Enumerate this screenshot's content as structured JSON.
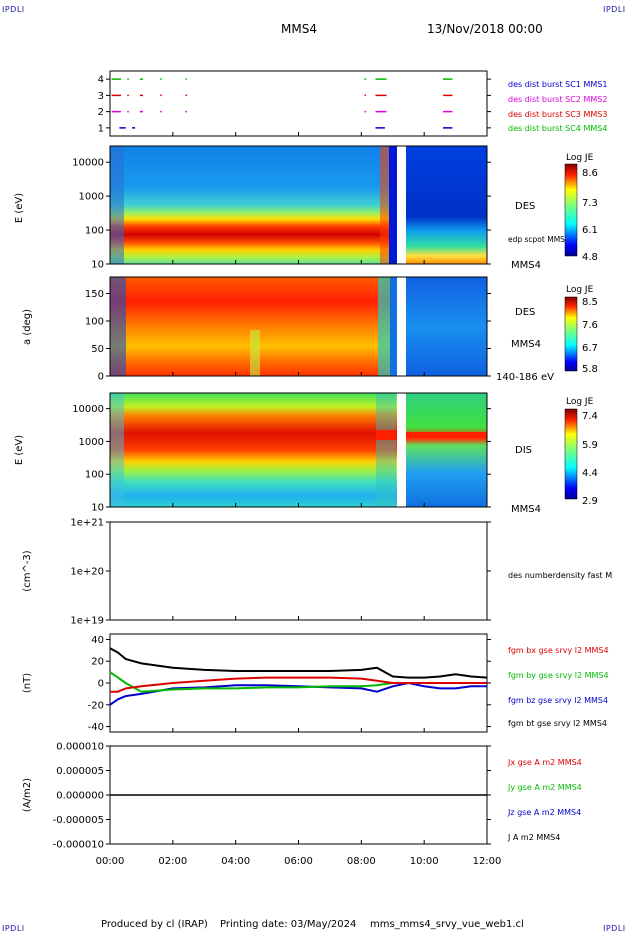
{
  "header": {
    "corner_label": "IPDLI",
    "spacecraft": "MMS4",
    "datetime": "13/Nov/2018 00:00"
  },
  "footer": {
    "credit": "Produced by cl (IRAP)",
    "printing_date": "Printing date: 03/May/2024",
    "script": "mms_mms4_srvy_vue_web1.cl"
  },
  "colors": {
    "mms1": "#0000cc",
    "mms2": "#dd00dd",
    "mms3": "#dd0000",
    "mms4": "#00bb00",
    "bx": "#dd0000",
    "by": "#00bb00",
    "bz": "#0000cc",
    "bt": "#000000"
  },
  "chart_data": [
    {
      "type": "scatter",
      "panel": "burst-availability",
      "yticks": [
        "1",
        "2",
        "3",
        "4"
      ],
      "ylim": [
        0.5,
        4.5
      ],
      "series": [
        {
          "name": "des dist burst SC1 MMS1",
          "level": 1,
          "intervals_h": [
            [
              0.3,
              0.5
            ],
            [
              0.7,
              0.8
            ],
            [
              8.45,
              8.75
            ],
            [
              10.6,
              10.9
            ]
          ]
        },
        {
          "name": "des dist burst SC2 MMS2",
          "level": 2,
          "intervals_h": [
            [
              0.05,
              0.35
            ],
            [
              0.55,
              0.6
            ],
            [
              0.95,
              1.05
            ],
            [
              1.6,
              1.65
            ],
            [
              2.4,
              2.45
            ],
            [
              8.1,
              8.15
            ],
            [
              8.45,
              8.8
            ],
            [
              10.6,
              10.9
            ]
          ]
        },
        {
          "name": "des dist burst SC3 MMS3",
          "level": 3,
          "intervals_h": [
            [
              0.05,
              0.35
            ],
            [
              0.55,
              0.6
            ],
            [
              0.95,
              1.05
            ],
            [
              1.6,
              1.65
            ],
            [
              2.4,
              2.45
            ],
            [
              8.1,
              8.15
            ],
            [
              8.45,
              8.8
            ],
            [
              10.6,
              10.9
            ]
          ]
        },
        {
          "name": "des dist burst SC4 MMS4",
          "level": 4,
          "intervals_h": [
            [
              0.05,
              0.35
            ],
            [
              0.55,
              0.6
            ],
            [
              0.95,
              1.05
            ],
            [
              1.6,
              1.65
            ],
            [
              2.4,
              2.45
            ],
            [
              8.1,
              8.15
            ],
            [
              8.45,
              8.8
            ],
            [
              10.6,
              10.9
            ]
          ]
        }
      ]
    },
    {
      "type": "heatmap",
      "panel": "des-energy",
      "ylabel": "E (eV)",
      "yscale": "log",
      "ylim": [
        10,
        30000
      ],
      "yticks": [
        "10",
        "100",
        "1000",
        "10000"
      ],
      "right_label": "DES",
      "overlay_label": "edp scpot MMS4",
      "bottom_right_label": "MMS4",
      "colorbar": {
        "title": "Log JE",
        "ticks": [
          "8.6",
          "7.3",
          "6.1",
          "4.8"
        ],
        "range": [
          4.8,
          8.6
        ]
      }
    },
    {
      "type": "heatmap",
      "panel": "des-pitch-angle",
      "ylabel": "a (deg)",
      "ylim": [
        0,
        180
      ],
      "yticks": [
        "0",
        "50",
        "100",
        "150"
      ],
      "right_label": "DES",
      "right_label2": "MMS4",
      "energy_range": "140-186 eV",
      "colorbar": {
        "title": "Log JE",
        "ticks": [
          "8.5",
          "7.6",
          "6.7",
          "5.8"
        ],
        "range": [
          5.8,
          8.5
        ]
      }
    },
    {
      "type": "heatmap",
      "panel": "dis-energy",
      "ylabel": "E (eV)",
      "yscale": "log",
      "ylim": [
        10,
        30000
      ],
      "yticks": [
        "10",
        "100",
        "1000",
        "10000"
      ],
      "right_label": "DIS",
      "bottom_right_label": "MMS4",
      "colorbar": {
        "title": "Log JE",
        "ticks": [
          "7.4",
          "5.9",
          "4.4",
          "2.9"
        ],
        "range": [
          2.9,
          7.4
        ]
      }
    },
    {
      "type": "line",
      "panel": "density",
      "ylabel": "(cm^-3)",
      "yscale": "log",
      "yticks": [
        "1e+19",
        "1e+20",
        "1e+21"
      ],
      "ylim": [
        1e+19,
        1e+21
      ],
      "series": [
        {
          "name": "des numberdensity fast M",
          "values": []
        }
      ]
    },
    {
      "type": "line",
      "panel": "magnetic-field",
      "ylabel": "(nT)",
      "ylim": [
        -45,
        45
      ],
      "yticks": [
        "-40",
        "-20",
        "0",
        "20",
        "40"
      ],
      "x": [
        0,
        0.25,
        0.5,
        1,
        2,
        3,
        4,
        5,
        6,
        7,
        8,
        8.5,
        9,
        9.5,
        10,
        10.5,
        11,
        11.5,
        12
      ],
      "series": [
        {
          "name": "fgm bx gse srvy l2 MMS4",
          "values": [
            -8,
            -8,
            -5,
            -3,
            0,
            2,
            4,
            5,
            5,
            5,
            4,
            2,
            0,
            0,
            0,
            0,
            0,
            0,
            0
          ]
        },
        {
          "name": "fgm by gse srvy l2 MMS4",
          "values": [
            10,
            5,
            0,
            -8,
            -6,
            -5,
            -5,
            -4,
            -4,
            -3,
            -3,
            -2,
            0,
            0,
            0,
            0,
            0,
            0,
            0
          ]
        },
        {
          "name": "fgm bz gse srvy l2 MMS4",
          "values": [
            -20,
            -15,
            -12,
            -10,
            -5,
            -4,
            -2,
            -2,
            -3,
            -4,
            -5,
            -8,
            -3,
            0,
            -3,
            -5,
            -5,
            -3,
            -3
          ]
        },
        {
          "name": "fgm bt gse srvy l2 MMS4",
          "values": [
            32,
            28,
            22,
            18,
            14,
            12,
            11,
            11,
            11,
            11,
            12,
            14,
            6,
            5,
            5,
            6,
            8,
            6,
            5
          ]
        }
      ]
    },
    {
      "type": "line",
      "panel": "current-density",
      "ylabel": "(A/m2)",
      "ylim": [
        -1e-05,
        1e-05
      ],
      "yticks": [
        "-0.000010",
        "-0.000005",
        "0.000000",
        "0.000005",
        "0.000010"
      ],
      "series": [
        {
          "name": "Jx gse A m2 MMS4",
          "values": [
            0,
            0
          ]
        },
        {
          "name": "Jy gse A m2 MMS4",
          "values": [
            0,
            0
          ]
        },
        {
          "name": "Jz gse A m2 MMS4",
          "values": [
            0,
            0
          ]
        },
        {
          "name": "J A m2 MMS4",
          "values": [
            0,
            0
          ]
        }
      ]
    }
  ],
  "x_axis": {
    "ticks": [
      "00:00",
      "02:00",
      "04:00",
      "06:00",
      "08:00",
      "10:00",
      "12:00"
    ],
    "range_h": [
      0,
      12
    ]
  }
}
